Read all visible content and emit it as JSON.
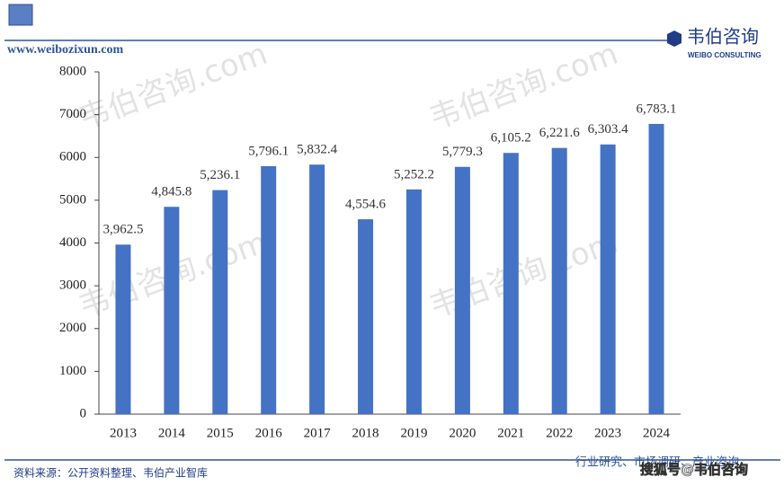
{
  "header": {
    "url": "www.weibozixun.com",
    "brand": "韦伯咨询",
    "brand_en": "WEIBO CONSULTING"
  },
  "watermark": "韦伯咨询.com",
  "footer": {
    "source": "资料来源：公开资料整理、韦伯产业智库",
    "slogan": "行业研究、市场调研、产业咨询",
    "platform": "搜狐号@韦伯咨询"
  },
  "chart_data": {
    "type": "bar",
    "color": "#4472c4",
    "categories": [
      "2013",
      "2014",
      "2015",
      "2016",
      "2017",
      "2018",
      "2019",
      "2020",
      "2021",
      "2022",
      "2023",
      "2024"
    ],
    "values": [
      3962.5,
      4845.8,
      5236.1,
      5796.1,
      5832.4,
      4554.6,
      5252.2,
      5779.3,
      6105.2,
      6221.6,
      6303.4,
      6783.1
    ],
    "value_labels": [
      "3,962.5",
      "4,845.8",
      "5,236.1",
      "5,796.1",
      "5,832.4",
      "4,554.6",
      "5,252.2",
      "5,779.3",
      "6,105.2",
      "6,221.6",
      "6,303.4",
      "6,783.1"
    ],
    "ylim": [
      0,
      8000
    ],
    "yticks": [
      0,
      1000,
      2000,
      3000,
      4000,
      5000,
      6000,
      7000,
      8000
    ],
    "grid": false
  }
}
